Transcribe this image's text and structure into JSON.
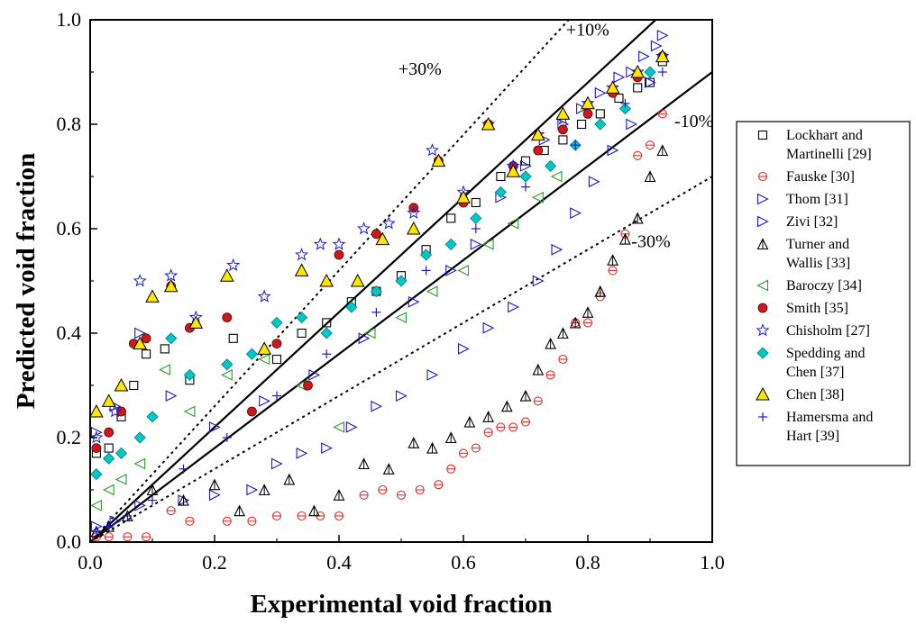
{
  "chart_data": {
    "type": "scatter",
    "xlabel": "Experimental void fraction",
    "ylabel": "Predicted void fraction",
    "xlim": [
      0,
      1.0
    ],
    "ylim": [
      0,
      1.0
    ],
    "x_ticks": [
      "0.0",
      "0.2",
      "0.4",
      "0.6",
      "0.8",
      "1.0"
    ],
    "y_ticks": [
      "0.0",
      "0.2",
      "0.4",
      "0.6",
      "0.8",
      "1.0"
    ],
    "grid": false,
    "legend_position": "right",
    "reference_lines": [
      {
        "label": "+10%",
        "slope": 1.1,
        "style": "solid"
      },
      {
        "label": "-10%",
        "slope": 0.9,
        "style": "solid"
      },
      {
        "label": "+30%",
        "slope": 1.3,
        "style": "dotted"
      },
      {
        "label": "-30%",
        "slope": 0.7,
        "style": "dotted"
      }
    ],
    "reference_label_text": [
      "+10%",
      "-10%",
      "+30%",
      "-30%"
    ],
    "series": [
      {
        "name": "Lockhart and Martinelli [29]",
        "legend_lines": [
          "Lockhart and",
          "Martinelli [29]"
        ],
        "marker": "square",
        "color": "#000000",
        "x": [
          0.01,
          0.03,
          0.05,
          0.07,
          0.09,
          0.12,
          0.16,
          0.23,
          0.3,
          0.34,
          0.38,
          0.42,
          0.46,
          0.5,
          0.54,
          0.58,
          0.62,
          0.66,
          0.7,
          0.73,
          0.76,
          0.79,
          0.82,
          0.85,
          0.88,
          0.9,
          0.92
        ],
        "y": [
          0.17,
          0.18,
          0.24,
          0.3,
          0.36,
          0.37,
          0.31,
          0.39,
          0.35,
          0.4,
          0.42,
          0.46,
          0.48,
          0.51,
          0.56,
          0.62,
          0.65,
          0.7,
          0.73,
          0.75,
          0.77,
          0.8,
          0.82,
          0.85,
          0.87,
          0.88,
          0.92
        ]
      },
      {
        "name": "Fauske [30]",
        "legend_lines": [
          "Fauske [30]"
        ],
        "marker": "circle-bar",
        "color": "#e0302a",
        "x": [
          0.01,
          0.03,
          0.06,
          0.09,
          0.13,
          0.16,
          0.22,
          0.26,
          0.3,
          0.34,
          0.37,
          0.4,
          0.44,
          0.47,
          0.5,
          0.53,
          0.56,
          0.58,
          0.6,
          0.62,
          0.64,
          0.66,
          0.68,
          0.7,
          0.72,
          0.74,
          0.76,
          0.78,
          0.8,
          0.82,
          0.84,
          0.86,
          0.88,
          0.9,
          0.92
        ],
        "y": [
          0.01,
          0.01,
          0.01,
          0.01,
          0.06,
          0.04,
          0.04,
          0.04,
          0.05,
          0.05,
          0.05,
          0.05,
          0.09,
          0.1,
          0.09,
          0.1,
          0.11,
          0.14,
          0.17,
          0.18,
          0.21,
          0.22,
          0.22,
          0.23,
          0.27,
          0.32,
          0.35,
          0.42,
          0.42,
          0.47,
          0.52,
          0.59,
          0.74,
          0.76,
          0.82
        ]
      },
      {
        "name": "Thom [31]",
        "legend_lines": [
          "Thom [31]"
        ],
        "marker": "tri-right",
        "color": "#1a1acc",
        "x": [
          0.01,
          0.04,
          0.08,
          0.13,
          0.2,
          0.28,
          0.36,
          0.44,
          0.52,
          0.58,
          0.62,
          0.66,
          0.7,
          0.73,
          0.76,
          0.79,
          0.82,
          0.85,
          0.87,
          0.89,
          0.91,
          0.92
        ],
        "y": [
          0.21,
          0.26,
          0.4,
          0.28,
          0.22,
          0.27,
          0.32,
          0.39,
          0.46,
          0.52,
          0.57,
          0.66,
          0.72,
          0.77,
          0.8,
          0.83,
          0.86,
          0.89,
          0.9,
          0.93,
          0.95,
          0.97
        ]
      },
      {
        "name": "Zivi [32]",
        "legend_lines": [
          "Zivi [32]"
        ],
        "marker": "tri-right",
        "color": "#1a1acc",
        "x": [
          0.01,
          0.04,
          0.08,
          0.15,
          0.2,
          0.26,
          0.3,
          0.34,
          0.38,
          0.42,
          0.46,
          0.5,
          0.55,
          0.6,
          0.64,
          0.68,
          0.72,
          0.75,
          0.78,
          0.81,
          0.84,
          0.87,
          0.9
        ],
        "y": [
          0.03,
          0.04,
          0.07,
          0.08,
          0.09,
          0.1,
          0.15,
          0.17,
          0.18,
          0.22,
          0.26,
          0.28,
          0.32,
          0.37,
          0.41,
          0.45,
          0.5,
          0.56,
          0.63,
          0.69,
          0.75,
          0.8,
          0.88
        ]
      },
      {
        "name": "Turner and Wallis [33]",
        "legend_lines": [
          "Turner and",
          "Wallis [33]"
        ],
        "marker": "tri-up",
        "color": "#000000",
        "x": [
          0.01,
          0.03,
          0.06,
          0.1,
          0.15,
          0.2,
          0.24,
          0.28,
          0.32,
          0.36,
          0.4,
          0.44,
          0.48,
          0.52,
          0.55,
          0.58,
          0.61,
          0.64,
          0.67,
          0.7,
          0.72,
          0.74,
          0.76,
          0.78,
          0.8,
          0.82,
          0.84,
          0.86,
          0.88,
          0.9,
          0.92
        ],
        "y": [
          0.02,
          0.03,
          0.05,
          0.1,
          0.08,
          0.11,
          0.06,
          0.1,
          0.12,
          0.06,
          0.09,
          0.15,
          0.14,
          0.19,
          0.18,
          0.2,
          0.23,
          0.24,
          0.26,
          0.28,
          0.33,
          0.38,
          0.4,
          0.42,
          0.44,
          0.48,
          0.54,
          0.58,
          0.62,
          0.7,
          0.75
        ]
      },
      {
        "name": "Baroczy [34]",
        "legend_lines": [
          "Baroczy [34]"
        ],
        "marker": "tri-left",
        "color": "#2e9a2e",
        "x": [
          0.01,
          0.03,
          0.05,
          0.08,
          0.12,
          0.16,
          0.22,
          0.28,
          0.34,
          0.4,
          0.45,
          0.5,
          0.55,
          0.6,
          0.64,
          0.68,
          0.72,
          0.75
        ],
        "y": [
          0.07,
          0.1,
          0.12,
          0.15,
          0.33,
          0.25,
          0.32,
          0.35,
          0.3,
          0.22,
          0.4,
          0.43,
          0.48,
          0.52,
          0.57,
          0.61,
          0.66,
          0.7
        ]
      },
      {
        "name": "Smith [35]",
        "legend_lines": [
          "Smith [35]"
        ],
        "marker": "circle-filled",
        "color": "#cc1a1a",
        "x": [
          0.01,
          0.03,
          0.05,
          0.07,
          0.09,
          0.13,
          0.16,
          0.22,
          0.26,
          0.3,
          0.35,
          0.4,
          0.46,
          0.52,
          0.56,
          0.6,
          0.64,
          0.68,
          0.72,
          0.76,
          0.8,
          0.84,
          0.88,
          0.92
        ],
        "y": [
          0.18,
          0.21,
          0.25,
          0.38,
          0.39,
          0.49,
          0.41,
          0.43,
          0.25,
          0.38,
          0.3,
          0.55,
          0.59,
          0.64,
          0.73,
          0.65,
          0.8,
          0.72,
          0.75,
          0.79,
          0.82,
          0.86,
          0.89,
          0.93
        ]
      },
      {
        "name": "Chisholm [27]",
        "legend_lines": [
          "Chisholm [27]"
        ],
        "marker": "star",
        "color": "#1a1acc",
        "x": [
          0.01,
          0.04,
          0.08,
          0.13,
          0.17,
          0.23,
          0.28,
          0.34,
          0.37,
          0.4,
          0.44,
          0.48,
          0.52,
          0.55,
          0.6,
          0.64,
          0.68,
          0.72,
          0.76,
          0.8,
          0.84,
          0.88,
          0.92
        ],
        "y": [
          0.2,
          0.25,
          0.5,
          0.51,
          0.43,
          0.53,
          0.47,
          0.55,
          0.57,
          0.57,
          0.6,
          0.61,
          0.63,
          0.75,
          0.67,
          0.8,
          0.72,
          0.78,
          0.81,
          0.84,
          0.87,
          0.9,
          0.93
        ]
      },
      {
        "name": "Spedding and Chen [37]",
        "legend_lines": [
          "Spedding and",
          "Chen [37]"
        ],
        "marker": "diamond",
        "color": "#00c8c8",
        "x": [
          0.01,
          0.03,
          0.05,
          0.08,
          0.1,
          0.13,
          0.16,
          0.22,
          0.26,
          0.3,
          0.34,
          0.38,
          0.42,
          0.46,
          0.5,
          0.54,
          0.58,
          0.62,
          0.66,
          0.7,
          0.74,
          0.78,
          0.82,
          0.86,
          0.9
        ],
        "y": [
          0.13,
          0.16,
          0.17,
          0.2,
          0.24,
          0.39,
          0.32,
          0.34,
          0.36,
          0.42,
          0.43,
          0.4,
          0.45,
          0.48,
          0.5,
          0.55,
          0.57,
          0.62,
          0.67,
          0.7,
          0.72,
          0.76,
          0.8,
          0.83,
          0.9
        ]
      },
      {
        "name": "Chen [38]",
        "legend_lines": [
          "Chen [38]"
        ],
        "marker": "tri-filled",
        "color": "#ffe600",
        "x": [
          0.01,
          0.03,
          0.05,
          0.08,
          0.1,
          0.13,
          0.17,
          0.22,
          0.28,
          0.34,
          0.38,
          0.43,
          0.47,
          0.52,
          0.56,
          0.6,
          0.64,
          0.68,
          0.72,
          0.76,
          0.8,
          0.84,
          0.88,
          0.92
        ],
        "y": [
          0.25,
          0.27,
          0.3,
          0.38,
          0.47,
          0.49,
          0.42,
          0.51,
          0.37,
          0.52,
          0.5,
          0.5,
          0.58,
          0.6,
          0.73,
          0.66,
          0.8,
          0.71,
          0.78,
          0.82,
          0.84,
          0.87,
          0.9,
          0.93
        ]
      },
      {
        "name": "Hamersma and Hart [39]",
        "legend_lines": [
          "Hamersma and",
          "Hart [39]"
        ],
        "marker": "plus",
        "color": "#1a1acc",
        "x": [
          0.01,
          0.03,
          0.06,
          0.1,
          0.15,
          0.22,
          0.3,
          0.38,
          0.46,
          0.54,
          0.62,
          0.7,
          0.78,
          0.86,
          0.92
        ],
        "y": [
          0.02,
          0.03,
          0.05,
          0.08,
          0.14,
          0.2,
          0.28,
          0.36,
          0.44,
          0.52,
          0.6,
          0.68,
          0.76,
          0.84,
          0.9
        ]
      }
    ]
  }
}
